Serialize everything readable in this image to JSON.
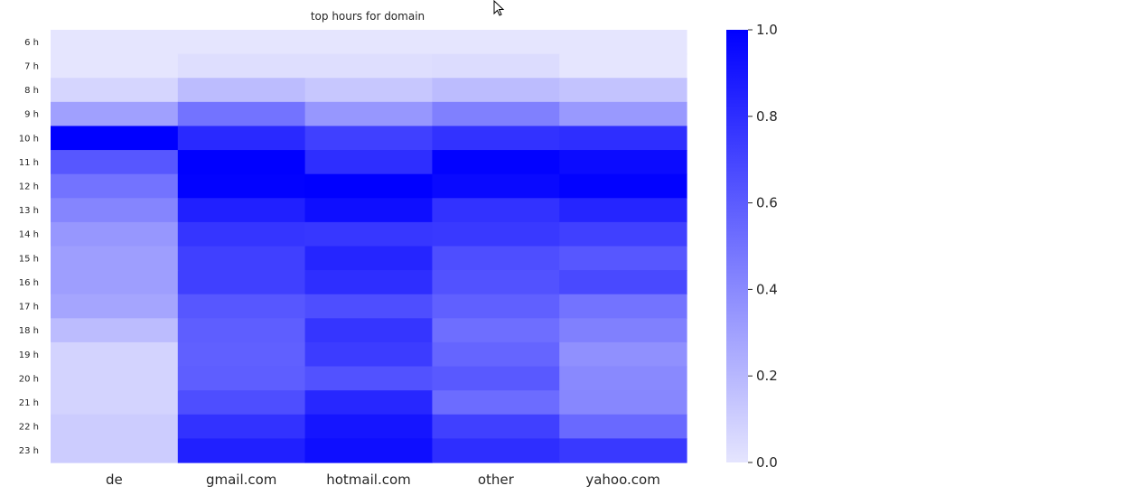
{
  "chart_data": {
    "type": "heatmap",
    "title": "top hours for domain",
    "xlabel": "",
    "ylabel": "",
    "columns": [
      "de",
      "gmail.com",
      "hotmail.com",
      "other",
      "yahoo.com"
    ],
    "rows": [
      "6 h",
      "7 h",
      "8 h",
      "9 h",
      "10 h",
      "11 h",
      "12 h",
      "13 h",
      "14 h",
      "15 h",
      "16 h",
      "17 h",
      "18 h",
      "19 h",
      "20 h",
      "21 h",
      "22 h",
      "23 h"
    ],
    "values": [
      [
        0.0,
        0.0,
        0.0,
        0.0,
        0.0
      ],
      [
        0.0,
        0.03,
        0.03,
        0.04,
        0.0
      ],
      [
        0.07,
        0.18,
        0.13,
        0.18,
        0.15
      ],
      [
        0.3,
        0.5,
        0.34,
        0.44,
        0.33
      ],
      [
        1.0,
        0.82,
        0.72,
        0.78,
        0.8
      ],
      [
        0.62,
        1.0,
        0.8,
        0.99,
        0.95
      ],
      [
        0.5,
        0.99,
        1.0,
        0.96,
        0.99
      ],
      [
        0.42,
        0.86,
        0.94,
        0.78,
        0.84
      ],
      [
        0.34,
        0.77,
        0.76,
        0.75,
        0.72
      ],
      [
        0.31,
        0.72,
        0.84,
        0.66,
        0.62
      ],
      [
        0.31,
        0.72,
        0.8,
        0.64,
        0.68
      ],
      [
        0.28,
        0.62,
        0.66,
        0.58,
        0.5
      ],
      [
        0.18,
        0.59,
        0.77,
        0.52,
        0.44
      ],
      [
        0.08,
        0.58,
        0.74,
        0.56,
        0.37
      ],
      [
        0.08,
        0.59,
        0.64,
        0.61,
        0.4
      ],
      [
        0.08,
        0.66,
        0.83,
        0.53,
        0.41
      ],
      [
        0.11,
        0.78,
        0.91,
        0.72,
        0.54
      ],
      [
        0.11,
        0.86,
        0.94,
        0.8,
        0.75
      ]
    ],
    "colorbar": {
      "min": 0.0,
      "max": 1.0,
      "ticks": [
        "0.0",
        "0.2",
        "0.4",
        "0.6",
        "0.8",
        "1.0"
      ],
      "low_color": "#e5e5fe",
      "high_color": "#0000ff"
    },
    "grid": false
  }
}
